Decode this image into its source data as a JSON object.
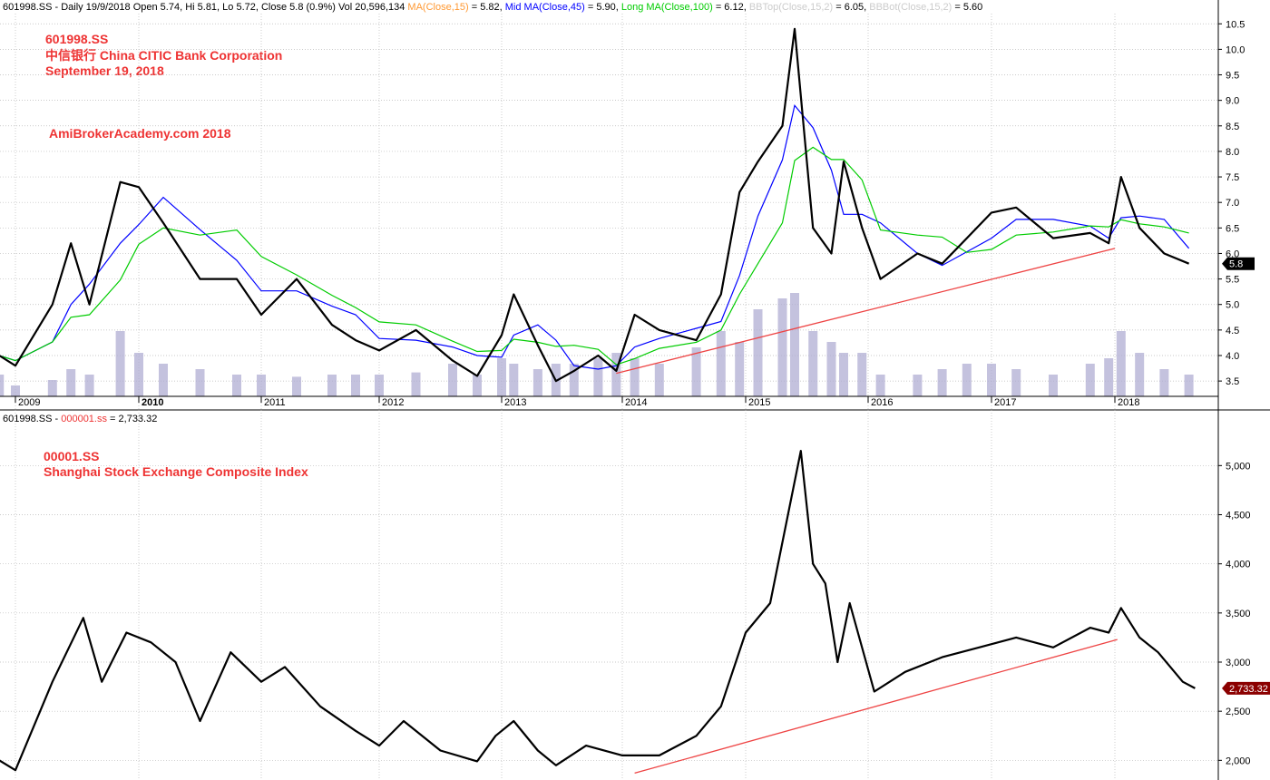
{
  "colors": {
    "ma_short": "#ff9933",
    "ma_mid": "#0000ff",
    "ma_long": "#00cc00",
    "bb": "#cccccc",
    "volume": "#b0aed3",
    "annotation": "#ee3333",
    "trendline": "#ee4444",
    "grid": "#b9b9b9"
  },
  "top_header": {
    "prefix": "601998.SS - Daily 19/9/2018 Open 5.74, Hi 5.81, Lo 5.72, Close 5.8 (0.9%) Vol 20,596,134 ",
    "ma_short_label": "MA(Close,15)",
    "ma_short_value": " = 5.82, ",
    "ma_mid_label": "Mid MA(Close,45)",
    "ma_mid_value": " = 5.90, ",
    "ma_long_label": "Long MA(Close,100)",
    "ma_long_value": " = 6.12, ",
    "bbtop_label": "BBTop(Close,15,2)",
    "bbtop_value": " = 6.05, ",
    "bbbot_label": "BBBot(Close,15,2)",
    "bbbot_value": " = 5.60"
  },
  "bottom_header": {
    "prefix": "601998.SS - ",
    "index_label": "000001.ss",
    "index_value": " = 2,733.32"
  },
  "annotations": {
    "top_line1": "601998.SS",
    "top_line2": "中信银行 China CITIC Bank Corporation",
    "top_line3": "September 19, 2018",
    "watermark": "AmiBrokerAcademy.com  2018",
    "bottom_line1": "00001.SS",
    "bottom_line2": "Shanghai Stock Exchange Composite Index"
  },
  "chart_data": [
    {
      "type": "line",
      "ylim": [
        3.2,
        10.7
      ],
      "yticks": [
        "3.5",
        "4.0",
        "4.5",
        "5.0",
        "5.5",
        "6.0",
        "6.5",
        "7.0",
        "7.5",
        "8.0",
        "8.5",
        "9.0",
        "9.5",
        "10.0",
        "10.5"
      ],
      "x_ticks": [
        "2009",
        "2010",
        "2011",
        "2012",
        "2013",
        "2014",
        "2015",
        "2016",
        "2017",
        "2018"
      ],
      "last_value_label": "5.8",
      "series": [
        {
          "x": [
            2008.88,
            2009.0,
            2009.3,
            2009.45,
            2009.6,
            2009.85,
            2010.0,
            2010.2,
            2010.5,
            2010.8,
            2011.0,
            2011.3,
            2011.6,
            2011.8,
            2012.0,
            2012.3,
            2012.6,
            2012.8,
            2013.0,
            2013.1,
            2013.3,
            2013.45,
            2013.6,
            2013.8,
            2013.95,
            2014.1,
            2014.3,
            2014.6,
            2014.8,
            2014.95,
            2015.1,
            2015.3,
            2015.4,
            2015.55,
            2015.7,
            2015.8,
            2015.95,
            2016.1,
            2016.4,
            2016.6,
            2016.8,
            2017.0,
            2017.2,
            2017.5,
            2017.8,
            2017.95,
            2018.05,
            2018.2,
            2018.4,
            2018.6
          ],
          "values": [
            4.0,
            3.8,
            5.0,
            6.2,
            5.0,
            7.4,
            7.3,
            6.6,
            5.5,
            5.5,
            4.8,
            5.5,
            4.6,
            4.3,
            4.1,
            4.5,
            3.9,
            3.6,
            4.4,
            5.2,
            4.2,
            3.5,
            3.7,
            4.0,
            3.7,
            4.8,
            4.5,
            4.3,
            5.2,
            7.2,
            7.8,
            8.5,
            10.4,
            6.5,
            6.0,
            7.8,
            6.5,
            5.5,
            6.0,
            5.8,
            6.3,
            6.8,
            6.9,
            6.3,
            6.4,
            6.2,
            7.5,
            6.5,
            6.0,
            5.8
          ]
        }
      ],
      "volume": [
        0.2,
        0.1,
        0.15,
        0.25,
        0.2,
        0.6,
        0.4,
        0.3,
        0.25,
        0.2,
        0.2,
        0.18,
        0.2,
        0.2,
        0.2,
        0.22,
        0.3,
        0.2,
        0.35,
        0.3,
        0.25,
        0.3,
        0.3,
        0.35,
        0.4,
        0.35,
        0.3,
        0.45,
        0.6,
        0.5,
        0.8,
        0.9,
        0.95,
        0.6,
        0.5,
        0.4,
        0.4,
        0.2,
        0.2,
        0.25,
        0.3,
        0.3,
        0.25,
        0.2,
        0.3,
        0.35,
        0.6,
        0.4,
        0.25,
        0.2
      ],
      "trendline": {
        "from": [
          2013.95,
          3.65
        ],
        "to": [
          2018.0,
          6.1
        ]
      }
    },
    {
      "type": "line",
      "ylim": [
        1800,
        5400
      ],
      "yticks": [
        "2,000",
        "2,500",
        "3,000",
        "3,500",
        "4,000",
        "4,500",
        "5,000"
      ],
      "last_value_label": "2,733.32",
      "series": [
        {
          "x": [
            2008.88,
            2009.0,
            2009.3,
            2009.55,
            2009.7,
            2009.9,
            2010.1,
            2010.3,
            2010.5,
            2010.75,
            2011.0,
            2011.2,
            2011.5,
            2011.8,
            2012.0,
            2012.2,
            2012.5,
            2012.8,
            2012.95,
            2013.1,
            2013.3,
            2013.45,
            2013.7,
            2014.0,
            2014.3,
            2014.6,
            2014.8,
            2015.0,
            2015.2,
            2015.45,
            2015.55,
            2015.65,
            2015.75,
            2015.85,
            2016.05,
            2016.3,
            2016.6,
            2016.9,
            2017.2,
            2017.5,
            2017.8,
            2017.95,
            2018.05,
            2018.2,
            2018.35,
            2018.55,
            2018.65
          ],
          "values": [
            2000,
            1900,
            2800,
            3450,
            2800,
            3300,
            3200,
            3000,
            2400,
            3100,
            2800,
            2950,
            2550,
            2300,
            2150,
            2400,
            2100,
            1990,
            2250,
            2400,
            2100,
            1950,
            2150,
            2050,
            2050,
            2250,
            2550,
            3300,
            3600,
            5150,
            4000,
            3800,
            3000,
            3600,
            2700,
            2900,
            3050,
            3150,
            3250,
            3150,
            3350,
            3300,
            3550,
            3250,
            3100,
            2800,
            2733.32
          ]
        }
      ],
      "trendline": {
        "from": [
          2014.1,
          1870
        ],
        "to": [
          2018.02,
          3230
        ]
      }
    }
  ]
}
